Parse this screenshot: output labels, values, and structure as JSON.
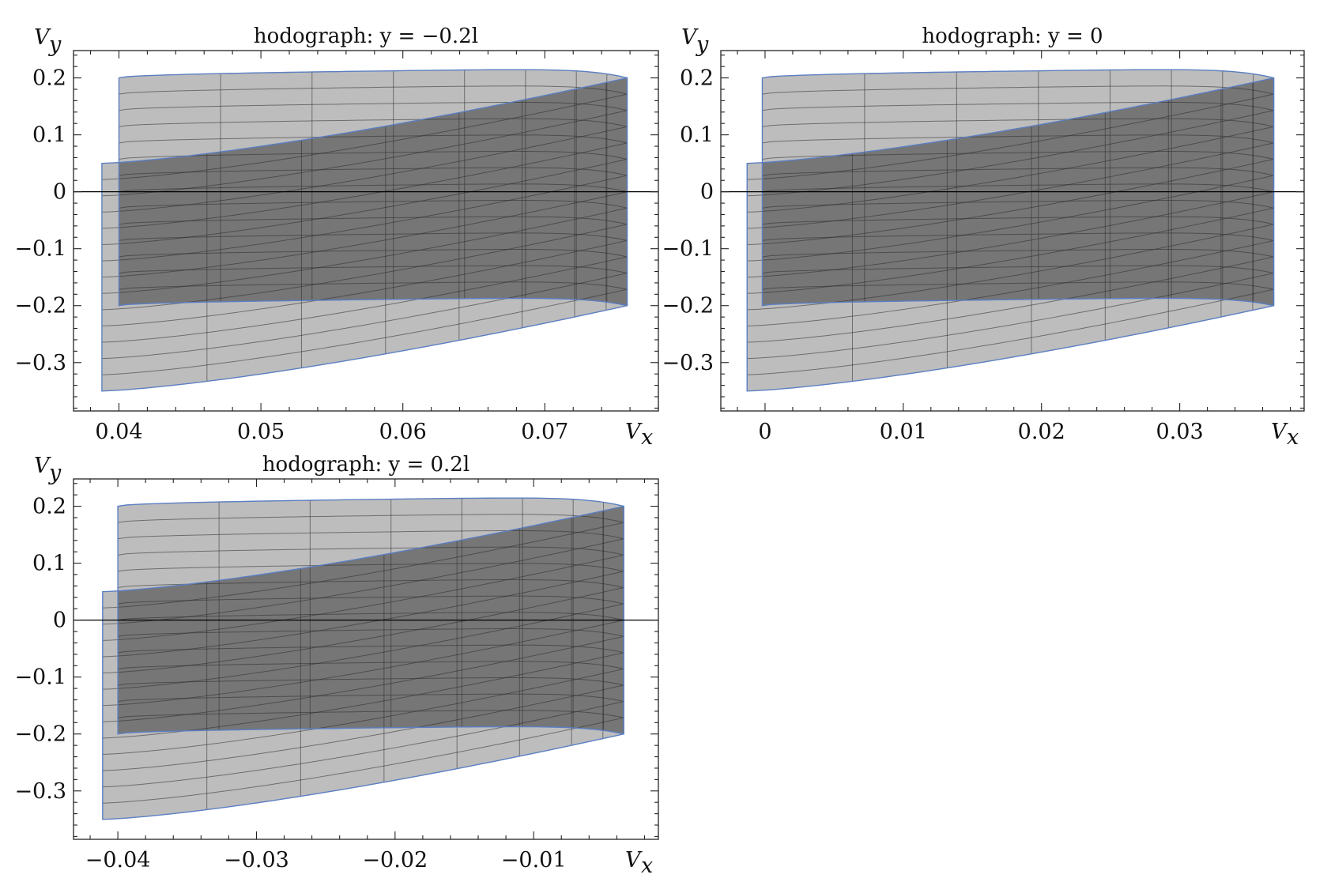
{
  "chart_data": [
    {
      "type": "area",
      "title": "hodograph: y = −0.2l",
      "xlabel": "V",
      "xlabel_sub": "x",
      "ylabel": "V",
      "ylabel_sub": "y",
      "xlim": [
        0.0368,
        0.078
      ],
      "ylim": [
        -0.385,
        0.248
      ],
      "xticks": [
        0.04,
        0.05,
        0.06,
        0.07
      ],
      "xtick_labels": [
        "0.04",
        "0.05",
        "0.06",
        "0.07"
      ],
      "yticks": [
        0.2,
        0.1,
        0,
        -0.1,
        -0.2,
        -0.3
      ],
      "ytick_labels": [
        "0.2",
        "0.1",
        "0",
        "−0.1",
        "−0.2",
        "−0.3"
      ],
      "x_left_back": 0.04,
      "x_left_front": 0.0388,
      "x_right": 0.0758,
      "back_band": {
        "top_start": 0.2,
        "top_peak": 0.217,
        "bottom_start": -0.2,
        "bottom_end": -0.185
      },
      "front_band": {
        "top_start": 0.05,
        "top_end": 0.2,
        "bottom_start": -0.35,
        "bottom_end": -0.2
      },
      "grid_lines": true
    },
    {
      "type": "area",
      "title": "hodograph: y = 0",
      "xlabel": "V",
      "xlabel_sub": "x",
      "ylabel": "V",
      "ylabel_sub": "y",
      "xlim": [
        -0.0032,
        0.039
      ],
      "ylim": [
        -0.385,
        0.248
      ],
      "xticks": [
        0,
        0.01,
        0.02,
        0.03
      ],
      "xtick_labels": [
        "0",
        "0.01",
        "0.02",
        "0.03"
      ],
      "yticks": [
        0.2,
        0.1,
        0,
        -0.1,
        -0.2,
        -0.3
      ],
      "ytick_labels": [
        "0.2",
        "0.1",
        "0",
        "−0.1",
        "−0.2",
        "−0.3"
      ],
      "x_left_back": -0.0002,
      "x_left_front": -0.0013,
      "x_right": 0.0368,
      "back_band": {
        "top_start": 0.2,
        "top_peak": 0.217,
        "bottom_start": -0.2,
        "bottom_end": -0.185
      },
      "front_band": {
        "top_start": 0.05,
        "top_end": 0.2,
        "bottom_start": -0.35,
        "bottom_end": -0.2
      },
      "grid_lines": true
    },
    {
      "type": "area",
      "title": "hodograph: y = 0.2l",
      "xlabel": "V",
      "xlabel_sub": "x",
      "ylabel": "V",
      "ylabel_sub": "y",
      "xlim": [
        -0.0432,
        -0.001
      ],
      "ylim": [
        -0.385,
        0.248
      ],
      "xticks": [
        -0.04,
        -0.03,
        -0.02,
        -0.01
      ],
      "xtick_labels": [
        "−0.04",
        "−0.03",
        "−0.02",
        "−0.01"
      ],
      "yticks": [
        0.2,
        0.1,
        0,
        -0.1,
        -0.2,
        -0.3
      ],
      "ytick_labels": [
        "0.2",
        "0.1",
        "0",
        "−0.1",
        "−0.2",
        "−0.3"
      ],
      "x_left_back": -0.04,
      "x_left_front": -0.0411,
      "x_right": -0.0035,
      "back_band": {
        "top_start": 0.2,
        "top_peak": 0.217,
        "bottom_start": -0.2,
        "bottom_end": -0.185
      },
      "front_band": {
        "top_start": 0.05,
        "top_end": 0.2,
        "bottom_start": -0.35,
        "bottom_end": -0.2
      },
      "grid_lines": true
    }
  ]
}
